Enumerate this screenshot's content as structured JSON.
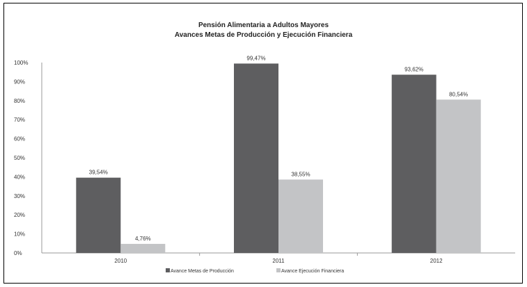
{
  "chart_data": {
    "type": "bar",
    "title": "Pensión Alimentaria a Adultos Mayores",
    "subtitle": "Avances Metas de Producción y Ejecución Financiera",
    "categories": [
      "2010",
      "2011",
      "2012"
    ],
    "series": [
      {
        "name": "Avance Metas de Producción",
        "values": [
          39.54,
          99.47,
          93.62
        ],
        "labels": [
          "39,54%",
          "99,47%",
          "93,62%"
        ],
        "color": "#5e5e60"
      },
      {
        "name": "Avance Ejecución Financiera",
        "values": [
          4.76,
          38.55,
          80.54
        ],
        "labels": [
          "4,76%",
          "38,55%",
          "80,54%"
        ],
        "color": "#c3c4c6"
      }
    ],
    "ylim": [
      0,
      100
    ],
    "yticks": [
      "0%",
      "10%",
      "20%",
      "30%",
      "40%",
      "50%",
      "60%",
      "70%",
      "80%",
      "90%",
      "100%"
    ],
    "xlabel": "",
    "ylabel": "",
    "grid": false,
    "legend_position": "bottom"
  }
}
